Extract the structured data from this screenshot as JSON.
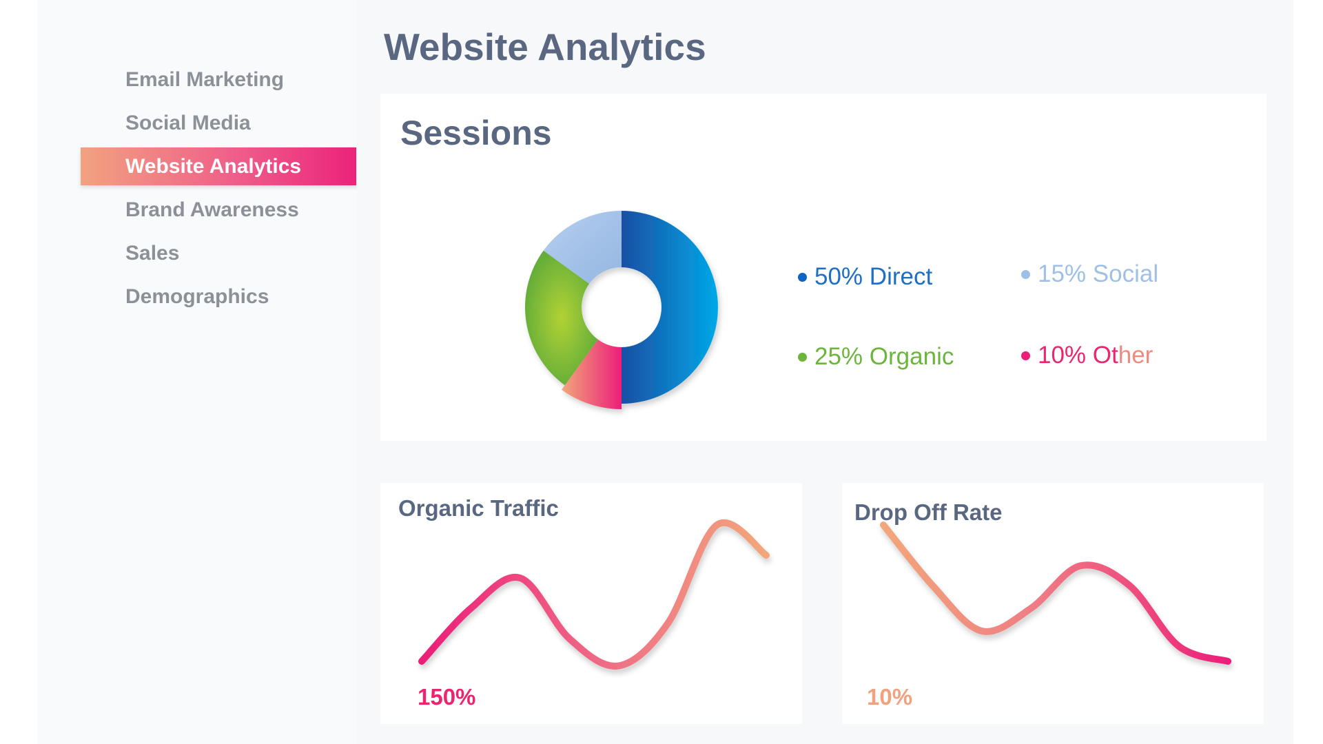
{
  "sidebar": {
    "items": [
      {
        "label": "Email Marketing"
      },
      {
        "label": "Social Media"
      },
      {
        "label": "Website Analytics"
      },
      {
        "label": "Brand Awareness"
      },
      {
        "label": "Sales"
      },
      {
        "label": "Demographics"
      }
    ],
    "active_item": "Website Analytics"
  },
  "page": {
    "title": "Website Analytics"
  },
  "sessions": {
    "title": "Sessions",
    "legend": {
      "direct": {
        "pct": "50%",
        "label": "Direct"
      },
      "social": {
        "pct": "15%",
        "label": "Social"
      },
      "organic": {
        "pct": "25%",
        "label": "Organic"
      },
      "other": {
        "pct": "10%",
        "label_a": "Ot",
        "label_b": "her"
      }
    }
  },
  "organic_traffic": {
    "title": "Organic Traffic",
    "value": "150%"
  },
  "drop_off_rate": {
    "title": "Drop Off Rate",
    "value": "10%"
  },
  "chart_data": [
    {
      "type": "pie",
      "title": "Sessions",
      "categories": [
        "Direct",
        "Organic",
        "Social",
        "Other"
      ],
      "values": [
        50,
        25,
        15,
        10
      ],
      "colors": [
        "#1a5cb8",
        "#7cc142",
        "#a7c5e8",
        "#ef5d8a"
      ]
    },
    {
      "type": "line",
      "title": "Organic Traffic",
      "x": [
        0,
        1,
        2,
        3,
        4,
        5,
        6,
        7
      ],
      "values": [
        5,
        40,
        60,
        20,
        2,
        30,
        95,
        75
      ],
      "ylim": [
        0,
        100
      ]
    },
    {
      "type": "line",
      "title": "Drop Off Rate",
      "x": [
        0,
        1,
        2,
        3,
        4,
        5,
        6,
        7
      ],
      "values": [
        95,
        55,
        25,
        40,
        68,
        55,
        15,
        5
      ],
      "ylim": [
        0,
        100
      ]
    }
  ],
  "colors": {
    "accent_start": "#f2a27f",
    "accent_end": "#ec1e79",
    "title": "#5a6781",
    "nav_text": "#8c9097"
  }
}
